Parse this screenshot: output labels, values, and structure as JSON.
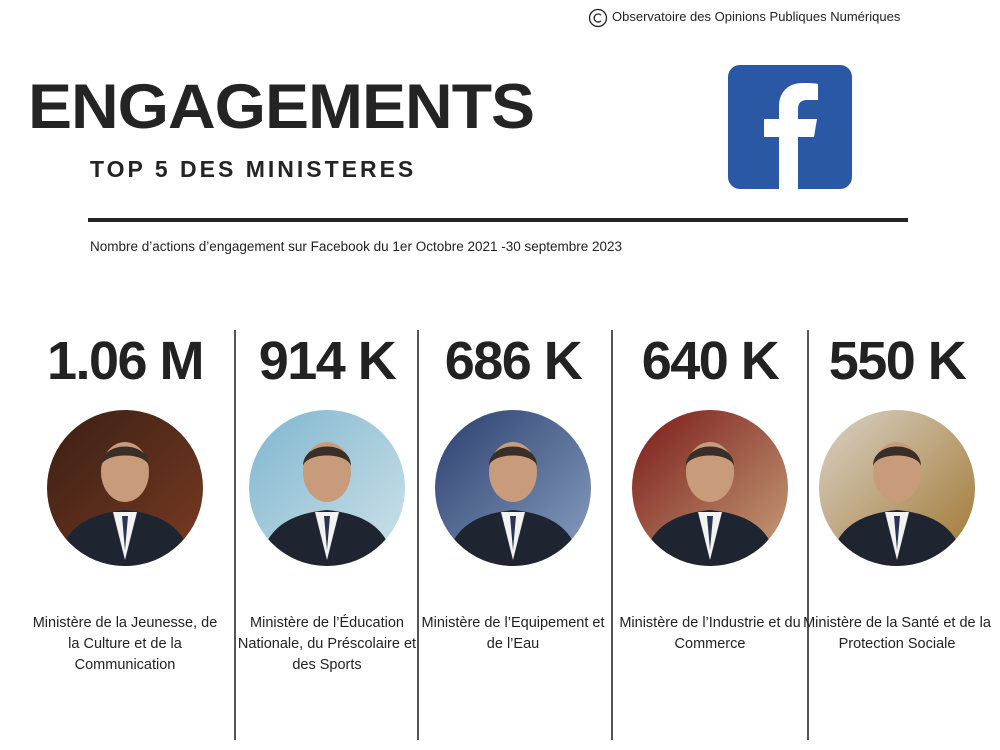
{
  "source": "Observatoire des Opinions Publiques Numériques",
  "title": "ENGAGEMENTS",
  "subtitle": "TOP 5 DES MINISTERES",
  "description": "Nombre d’actions d’engagement sur Facebook du 1er Octobre 2021 -30 septembre 2023",
  "items": [
    {
      "value": "1.06 M",
      "name": "Ministère de la Jeunesse, de la Culture et de la Communication"
    },
    {
      "value": "914 K",
      "name": "Ministère de l’Éducation Nationale, du Préscolaire et des Sports"
    },
    {
      "value": "686 K",
      "name": "Ministère de l’Equipement et de l’Eau"
    },
    {
      "value": "640 K",
      "name": "Ministère de l’Industrie et du Commerce"
    },
    {
      "value": "550 K",
      "name": "Ministère de la Santé et de la Protection Sociale"
    }
  ]
}
